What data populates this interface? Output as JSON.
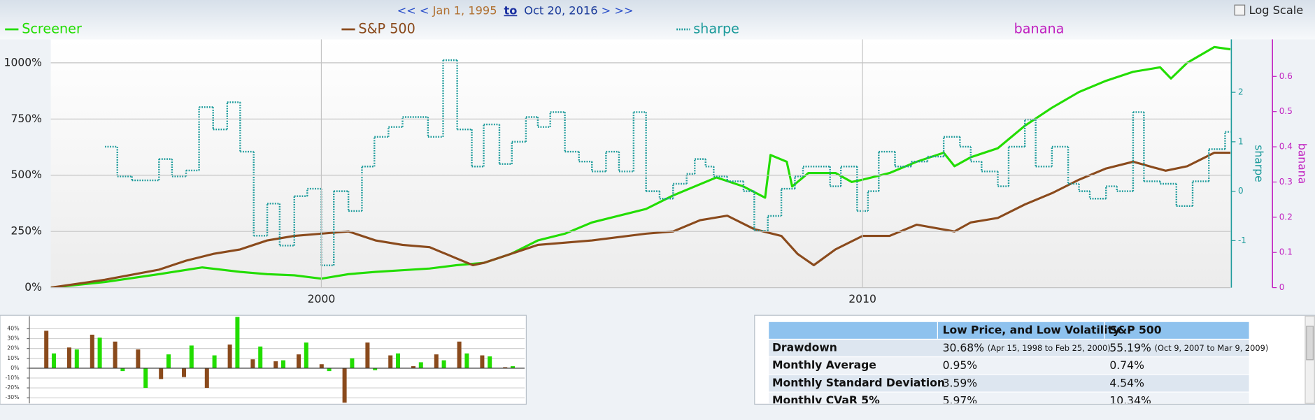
{
  "header": {
    "first": "<<",
    "prev": "<",
    "from": "Jan 1, 1995",
    "to": "to",
    "until": "Oct 20, 2016",
    "next": ">",
    "last": ">>",
    "log_scale": "Log Scale"
  },
  "chart_data": [
    {
      "type": "line",
      "xlim": [
        1995,
        2016.8
      ],
      "xticks": [
        2000,
        2010
      ],
      "ylim": [
        0,
        1104
      ],
      "yticks": [
        {
          "value": 0,
          "label": "0%"
        },
        {
          "value": 250,
          "label": "250%"
        },
        {
          "value": 500,
          "label": "500%"
        },
        {
          "value": 750,
          "label": "750%"
        },
        {
          "value": 1000,
          "label": "1000%"
        }
      ],
      "y2lim": [
        -1.95,
        3.07
      ],
      "y2ticks": [
        -1,
        0,
        1,
        2
      ],
      "y2label": "sharpe",
      "y3lim": [
        0,
        0.705
      ],
      "y3ticks": [
        0,
        0.1,
        0.2,
        0.3,
        0.4,
        0.5,
        0.6
      ],
      "y3label": "banana",
      "grid": true,
      "series": [
        {
          "name": "Screener",
          "color": "#22dd00",
          "axis": "y",
          "x": [
            1995,
            1996,
            1997,
            1997.8,
            1998.5,
            1999,
            1999.5,
            2000,
            2000.5,
            2001,
            2002,
            2002.5,
            2003,
            2003.5,
            2004,
            2004.5,
            2005,
            2005.5,
            2006,
            2006.5,
            2007,
            2007.3,
            2007.8,
            2008.2,
            2008.3,
            2008.6,
            2008.7,
            2009,
            2009.5,
            2009.8,
            2010,
            2010.5,
            2011,
            2011.5,
            2011.7,
            2012,
            2012.5,
            2013,
            2013.5,
            2014,
            2014.5,
            2015,
            2015.5,
            2015.7,
            2016,
            2016.5,
            2016.8
          ],
          "values": [
            0,
            25,
            60,
            90,
            70,
            60,
            55,
            40,
            60,
            70,
            85,
            100,
            110,
            150,
            210,
            240,
            290,
            320,
            350,
            410,
            460,
            490,
            450,
            400,
            590,
            560,
            450,
            510,
            510,
            470,
            480,
            510,
            560,
            600,
            540,
            580,
            620,
            720,
            800,
            870,
            920,
            960,
            980,
            930,
            1000,
            1070,
            1060
          ]
        },
        {
          "name": "S&P 500",
          "color": "#8a4a1c",
          "axis": "y",
          "x": [
            1995,
            1996,
            1997,
            1997.5,
            1998,
            1998.5,
            1999,
            1999.5,
            2000,
            2000.5,
            2001,
            2001.5,
            2002,
            2002.5,
            2002.8,
            2003,
            2003.5,
            2004,
            2005,
            2006,
            2006.5,
            2007,
            2007.5,
            2008,
            2008.5,
            2008.8,
            2009.1,
            2009.5,
            2010,
            2010.5,
            2011,
            2011.7,
            2012,
            2012.5,
            2013,
            2013.5,
            2014,
            2014.5,
            2015,
            2015.6,
            2016,
            2016.5,
            2016.8
          ],
          "values": [
            0,
            35,
            80,
            120,
            150,
            170,
            210,
            230,
            240,
            250,
            210,
            190,
            180,
            130,
            100,
            110,
            150,
            190,
            210,
            240,
            250,
            300,
            320,
            260,
            230,
            150,
            100,
            170,
            230,
            230,
            280,
            250,
            290,
            310,
            370,
            420,
            480,
            530,
            560,
            520,
            540,
            600,
            600
          ]
        },
        {
          "name": "sharpe",
          "color": "#1a9a9a",
          "axis": "y2",
          "step": true,
          "dash": "dotted",
          "x": [
            1996,
            1996.23,
            1996.5,
            1997,
            1997.24,
            1997.5,
            1997.74,
            1998,
            1998.26,
            1998.5,
            1998.75,
            1999,
            1999.23,
            1999.5,
            1999.74,
            2000,
            2000.23,
            2000.5,
            2000.75,
            2000.98,
            2001.24,
            2001.5,
            2001.97,
            2002.25,
            2002.51,
            2002.78,
            2003,
            2003.29,
            2003.52,
            2003.78,
            2004,
            2004.23,
            2004.5,
            2004.76,
            2005,
            2005.26,
            2005.5,
            2005.77,
            2006,
            2006.25,
            2006.5,
            2006.75,
            2006.9,
            2007.1,
            2007.25,
            2007.5,
            2007.8,
            2008,
            2008.25,
            2008.5,
            2008.75,
            2008.9,
            2009.4,
            2009.6,
            2009.9,
            2010.1,
            2010.3,
            2010.6,
            2010.9,
            2011.2,
            2011.5,
            2011.8,
            2012,
            2012.2,
            2012.5,
            2012.7,
            2013,
            2013.2,
            2013.5,
            2013.8,
            2014,
            2014.2,
            2014.5,
            2014.7,
            2015,
            2015.2,
            2015.5,
            2015.8,
            2016.1,
            2016.4,
            2016.7
          ],
          "values": [
            0.9,
            0.3,
            0.22,
            0.65,
            0.3,
            0.42,
            1.7,
            1.25,
            1.8,
            0.8,
            -0.9,
            -0.25,
            -1.1,
            -0.1,
            0.05,
            -1.5,
            0,
            -0.4,
            0.5,
            1.1,
            1.3,
            1.5,
            1.1,
            2.65,
            1.25,
            0.5,
            1.35,
            0.55,
            1,
            1.5,
            1.3,
            1.6,
            0.8,
            0.6,
            0.4,
            0.8,
            0.4,
            1.6,
            0,
            -0.15,
            0.15,
            0.35,
            0.65,
            0.5,
            0.3,
            0.2,
            0,
            -0.8,
            -0.5,
            0.05,
            0.3,
            0.5,
            0.1,
            0.5,
            -0.4,
            0,
            0.8,
            0.5,
            0.6,
            0.7,
            1.1,
            0.9,
            0.6,
            0.4,
            0.1,
            0.9,
            1.45,
            0.5,
            0.9,
            0.15,
            0,
            -0.15,
            0.1,
            0,
            1.6,
            0.2,
            0.15,
            -0.3,
            0.2,
            0.85,
            1.2
          ]
        },
        {
          "name": "banana",
          "color": "#c020c0",
          "axis": "y3",
          "x": [],
          "values": []
        }
      ]
    },
    {
      "type": "bar",
      "categories": [
        null,
        null,
        null,
        null,
        null,
        null,
        null,
        null,
        null,
        null,
        null,
        null,
        null,
        null,
        null,
        null,
        null,
        null,
        null,
        null,
        null
      ],
      "ylim": [
        -35.7,
        52.8
      ],
      "yticks": [
        {
          "value": 40,
          "label": "40%"
        },
        {
          "value": 30,
          "label": "30%"
        },
        {
          "value": 20,
          "label": "20%"
        },
        {
          "value": 10,
          "label": "10%"
        },
        {
          "value": 0,
          "label": "0%"
        },
        {
          "value": -10,
          "label": "-10%"
        },
        {
          "value": -20,
          "label": "-20%"
        },
        {
          "value": -30,
          "label": "-30%"
        }
      ],
      "grid": true,
      "series": [
        {
          "color": "#8a4a1c",
          "values": [
            38,
            21,
            34,
            27,
            19,
            -11,
            -9,
            -20,
            24,
            9,
            7,
            14,
            4,
            -35,
            26,
            13,
            2,
            14,
            27,
            13,
            1
          ]
        },
        {
          "color": "#22dd00",
          "values": [
            15,
            19,
            31,
            -3,
            -20,
            14,
            23,
            13,
            52,
            22,
            8,
            26,
            -3,
            10,
            -2,
            15,
            6,
            8,
            15,
            12,
            2
          ]
        }
      ]
    }
  ],
  "table": {
    "columns": [
      "Low Price, and Low Volatility",
      "S&P 500"
    ],
    "rows": [
      {
        "label": "Drawdown",
        "cells": [
          {
            "value": "30.68%",
            "note": "(Apr 15, 1998 to Feb 25, 2000)"
          },
          {
            "value": "55.19%",
            "note": "(Oct 9, 2007 to Mar 9, 2009)"
          }
        ]
      },
      {
        "label": "Monthly Average",
        "cells": [
          {
            "value": "0.95%"
          },
          {
            "value": "0.74%"
          }
        ]
      },
      {
        "label": "Monthly Standard Deviation",
        "cells": [
          {
            "value": "3.59%"
          },
          {
            "value": "4.54%"
          }
        ]
      },
      {
        "label": "Monthly CVaR 5%",
        "cells": [
          {
            "value": "5.97%"
          },
          {
            "value": "10.34%"
          }
        ]
      }
    ]
  }
}
